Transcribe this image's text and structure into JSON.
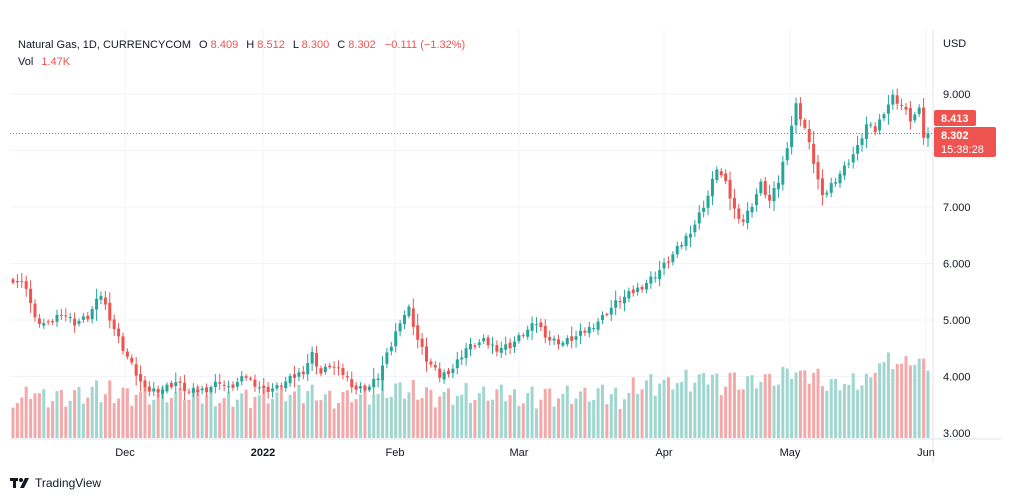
{
  "header": {
    "symbol": "Natural Gas, 1D, CURRENCYCOM",
    "o_label": "O",
    "o_value": "8.409",
    "h_label": "H",
    "h_value": "8.512",
    "l_label": "L",
    "l_value": "8.300",
    "c_label": "C",
    "c_value": "8.302",
    "change": "−0.111 (−1.32%)",
    "vol_label": "Vol",
    "vol_value": "1.47K"
  },
  "axis": {
    "currency": "USD",
    "price_ticks": [
      "9.000",
      "8.000",
      "7.000",
      "6.000",
      "5.000",
      "4.000",
      "3.000"
    ],
    "time_ticks": [
      "Dec",
      "2022",
      "Feb",
      "Mar",
      "Apr",
      "May",
      "Jun"
    ]
  },
  "labels": {
    "price_a": "8.413",
    "price_b": "8.302",
    "countdown": "15:38:28"
  },
  "footer": {
    "brand": "TradingView"
  },
  "colors": {
    "up": "#26a69a",
    "down": "#ef5350",
    "up_vol": "#9fd6cf",
    "down_vol": "#f3a9a9",
    "grid": "#f0f3fa",
    "text": "#131722"
  },
  "chart_data": {
    "type": "candlestick",
    "title": "Natural Gas, 1D, CURRENCYCOM",
    "ylabel": "USD",
    "ylim": [
      3.0,
      9.6
    ],
    "x_ticks": [
      "Dec",
      "2022",
      "Feb",
      "Mar",
      "Apr",
      "May",
      "Jun"
    ],
    "last_close": 8.302,
    "volume_last": "1.47K",
    "anchors": [
      [
        0,
        5.72
      ],
      [
        3,
        5.6
      ],
      [
        5,
        5.0
      ],
      [
        8,
        4.9
      ],
      [
        11,
        5.15
      ],
      [
        14,
        4.95
      ],
      [
        17,
        5.05
      ],
      [
        20,
        5.45
      ],
      [
        23,
        4.85
      ],
      [
        25,
        4.5
      ],
      [
        27,
        4.2
      ],
      [
        30,
        3.75
      ],
      [
        34,
        3.78
      ],
      [
        37,
        3.9
      ],
      [
        40,
        3.72
      ],
      [
        44,
        3.78
      ],
      [
        47,
        3.92
      ],
      [
        49,
        3.78
      ],
      [
        53,
        4.0
      ],
      [
        57,
        3.76
      ],
      [
        60,
        3.8
      ],
      [
        63,
        3.95
      ],
      [
        66,
        4.1
      ],
      [
        68,
        4.4
      ],
      [
        70,
        4.05
      ],
      [
        72,
        4.2
      ],
      [
        75,
        4.05
      ],
      [
        78,
        3.78
      ],
      [
        81,
        3.82
      ],
      [
        83,
        4.0
      ],
      [
        86,
        4.55
      ],
      [
        88,
        5.0
      ],
      [
        90,
        5.2
      ],
      [
        92,
        4.65
      ],
      [
        94,
        4.3
      ],
      [
        97,
        4.0
      ],
      [
        100,
        4.15
      ],
      [
        103,
        4.5
      ],
      [
        107,
        4.62
      ],
      [
        110,
        4.5
      ],
      [
        113,
        4.55
      ],
      [
        116,
        4.75
      ],
      [
        119,
        4.95
      ],
      [
        122,
        4.65
      ],
      [
        125,
        4.6
      ],
      [
        128,
        4.7
      ],
      [
        131,
        4.85
      ],
      [
        134,
        5.05
      ],
      [
        137,
        5.3
      ],
      [
        140,
        5.45
      ],
      [
        143,
        5.6
      ],
      [
        146,
        5.8
      ],
      [
        149,
        6.05
      ],
      [
        152,
        6.35
      ],
      [
        155,
        6.7
      ],
      [
        158,
        7.2
      ],
      [
        160,
        7.7
      ],
      [
        162,
        7.4
      ],
      [
        164,
        6.95
      ],
      [
        166,
        6.75
      ],
      [
        168,
        7.05
      ],
      [
        170,
        7.4
      ],
      [
        172,
        7.1
      ],
      [
        174,
        7.45
      ],
      [
        176,
        8.1
      ],
      [
        178,
        8.8
      ],
      [
        180,
        8.4
      ],
      [
        182,
        7.8
      ],
      [
        184,
        7.15
      ],
      [
        186,
        7.4
      ],
      [
        189,
        7.7
      ],
      [
        192,
        8.05
      ],
      [
        194,
        8.45
      ],
      [
        196,
        8.35
      ],
      [
        198,
        8.7
      ],
      [
        200,
        8.95
      ],
      [
        202,
        8.8
      ],
      [
        204,
        8.55
      ],
      [
        206,
        8.7
      ],
      [
        207,
        8.25
      ],
      [
        208,
        8.302
      ]
    ]
  }
}
